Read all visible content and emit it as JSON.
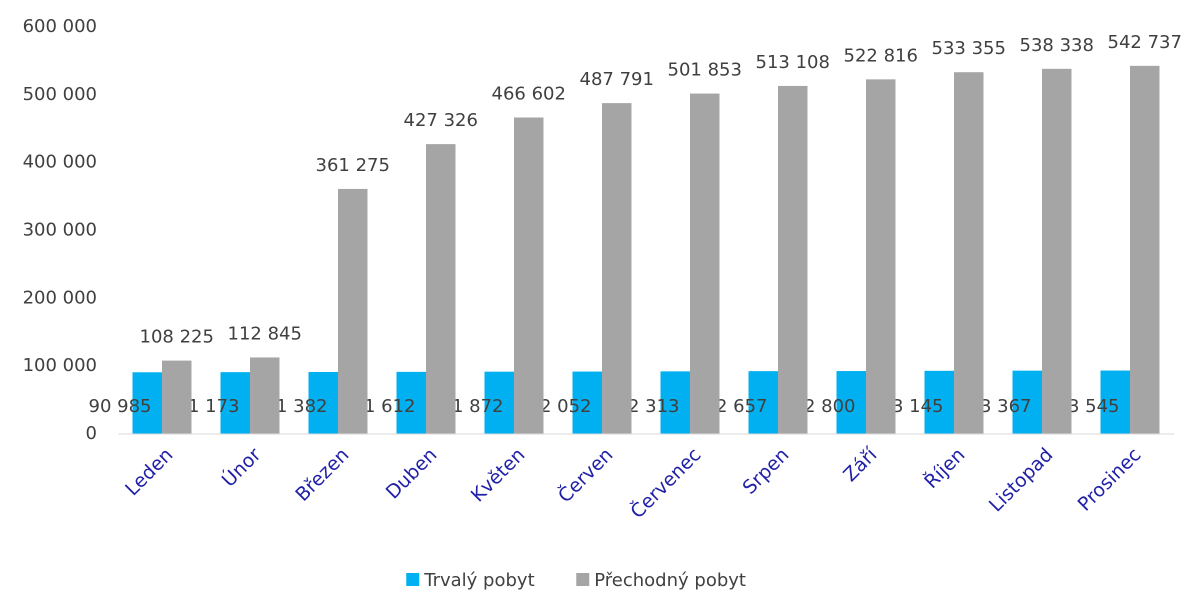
{
  "chart_data": {
    "type": "bar",
    "categories": [
      "Leden",
      "Únor",
      "Březen",
      "Duben",
      "Květen",
      "Červen",
      "Červenec",
      "Srpen",
      "Září",
      "Říjen",
      "Listopad",
      "Prosinec"
    ],
    "series": [
      {
        "name": "Trvalý pobyt",
        "color": "#00b0f0",
        "values": [
          90985,
          91173,
          91382,
          91612,
          91872,
          92052,
          92313,
          92657,
          92800,
          93145,
          93367,
          93545
        ],
        "value_labels": [
          "90 985",
          "91 173",
          "91 382",
          "91 612",
          "91 872",
          "92 052",
          "92 313",
          "92 657",
          "92 800",
          "93 145",
          "93 367",
          "93 545"
        ]
      },
      {
        "name": "Přechodný pobyt",
        "color": "#a5a5a5",
        "values": [
          108225,
          112845,
          361275,
          427326,
          466602,
          487791,
          501853,
          513108,
          522816,
          533355,
          538338,
          542737
        ],
        "value_labels": [
          "108 225",
          "112 845",
          "361 275",
          "427 326",
          "466 602",
          "487 791",
          "501 853",
          "513 108",
          "522 816",
          "533 355",
          "538 338",
          "542 737"
        ]
      }
    ],
    "ylim": [
      0,
      600000
    ],
    "yticks": [
      0,
      {
        "value": 100000,
        "label": "100 000"
      },
      {
        "value": 200000,
        "label": "200 000"
      },
      {
        "value": 300000,
        "label": "300 000"
      },
      {
        "value": 400000,
        "label": "400 000"
      },
      {
        "value": 500000,
        "label": "500 000"
      },
      {
        "value": 600000,
        "label": "600 000"
      }
    ],
    "grid": false,
    "legend": "bottom"
  }
}
